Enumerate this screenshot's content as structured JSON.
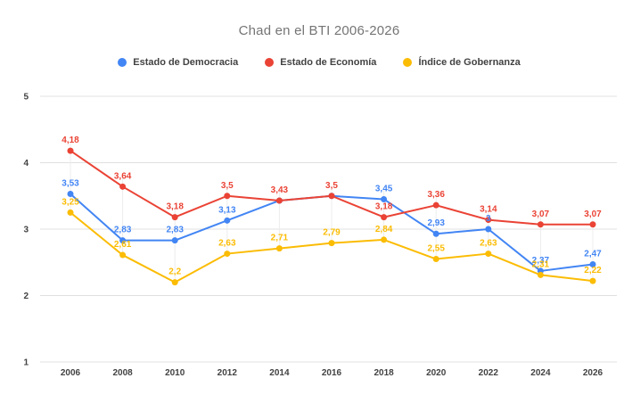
{
  "chart_data": {
    "type": "line",
    "title": "Chad en el BTI 2006-2026",
    "categories": [
      "2006",
      "2008",
      "2010",
      "2012",
      "2014",
      "2016",
      "2018",
      "2020",
      "2022",
      "2024",
      "2026"
    ],
    "y_axis": {
      "min": 1,
      "max": 5,
      "ticks": [
        1,
        2,
        3,
        4,
        5
      ]
    },
    "grid": true,
    "legend_position": "top",
    "series": [
      {
        "name": "Estado de Democracia",
        "color": "#4285F4",
        "values": [
          3.53,
          2.83,
          2.83,
          3.13,
          3.43,
          3.5,
          3.45,
          2.93,
          3.0,
          2.37,
          2.47
        ],
        "point_labels": [
          "3,53",
          "2,83",
          "2,83",
          "3,13",
          "",
          "",
          "3,45",
          "2,93",
          "3",
          "2,37",
          "2,47"
        ]
      },
      {
        "name": "Estado de Economía",
        "color": "#EA4335",
        "values": [
          4.18,
          3.64,
          3.18,
          3.5,
          3.43,
          3.5,
          3.18,
          3.36,
          3.14,
          3.07,
          3.07
        ],
        "point_labels": [
          "4,18",
          "3,64",
          "3,18",
          "3,5",
          "3,43",
          "3,5",
          "3,18",
          "3,36",
          "3,14",
          "3,07",
          "3,07"
        ]
      },
      {
        "name": "Índice de Gobernanza",
        "color": "#FBBC04",
        "values": [
          3.25,
          2.61,
          2.2,
          2.63,
          2.71,
          2.79,
          2.84,
          2.55,
          2.63,
          2.31,
          2.22
        ],
        "point_labels": [
          "3,25",
          "2,61",
          "2,2",
          "2,63",
          "2,71",
          "2,79",
          "2,84",
          "2,55",
          "2,63",
          "2,31",
          "2,22"
        ]
      }
    ]
  },
  "colors": {
    "background": "#ffffff",
    "grid": "#e0e0e0",
    "leader": "#ececec",
    "axis_label": "#424242",
    "title": "#757575"
  }
}
